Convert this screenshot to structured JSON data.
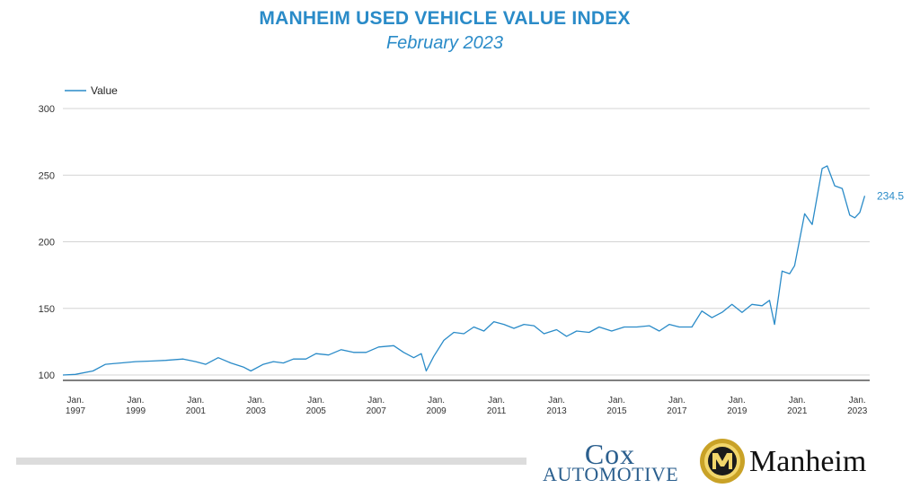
{
  "header": {
    "title": "MANHEIM USED VEHICLE VALUE INDEX",
    "subtitle": "February 2023"
  },
  "chart_data": {
    "type": "line",
    "title": "MANHEIM USED VEHICLE VALUE INDEX",
    "subtitle": "February 2023",
    "xlabel": "",
    "ylabel": "",
    "ylim": [
      100,
      300
    ],
    "yticks": [
      100,
      150,
      200,
      250,
      300
    ],
    "grid": true,
    "legend_position": "top-left",
    "color": "#2a8bc8",
    "xtick_labels": [
      {
        "year": 1997,
        "month": "Jan.",
        "year_label": "1997"
      },
      {
        "year": 1999,
        "month": "Jan.",
        "year_label": "1999"
      },
      {
        "year": 2001,
        "month": "Jan.",
        "year_label": "2001"
      },
      {
        "year": 2003,
        "month": "Jan.",
        "year_label": "2003"
      },
      {
        "year": 2005,
        "month": "Jan.",
        "year_label": "2005"
      },
      {
        "year": 2007,
        "month": "Jan.",
        "year_label": "2007"
      },
      {
        "year": 2009,
        "month": "Jan.",
        "year_label": "2009"
      },
      {
        "year": 2011,
        "month": "Jan.",
        "year_label": "2011"
      },
      {
        "year": 2013,
        "month": "Jan.",
        "year_label": "2013"
      },
      {
        "year": 2015,
        "month": "Jan.",
        "year_label": "2015"
      },
      {
        "year": 2017,
        "month": "Jan.",
        "year_label": "2017"
      },
      {
        "year": 2019,
        "month": "Jan.",
        "year_label": "2019"
      },
      {
        "year": 2021,
        "month": "Jan.",
        "year_label": "2021"
      },
      {
        "year": 2023,
        "month": "Jan.",
        "year_label": "2023"
      }
    ],
    "series": [
      {
        "name": "Value",
        "end_label": "234.5",
        "points": [
          [
            "1997-01",
            100
          ],
          [
            "1997-06",
            100.5
          ],
          [
            "1998-01",
            103
          ],
          [
            "1998-06",
            108
          ],
          [
            "1998-12",
            109
          ],
          [
            "1999-06",
            110
          ],
          [
            "2000-01",
            110.5
          ],
          [
            "2000-06",
            111
          ],
          [
            "2001-01",
            112
          ],
          [
            "2001-06",
            110
          ],
          [
            "2001-10",
            108
          ],
          [
            "2002-03",
            113
          ],
          [
            "2002-08",
            109
          ],
          [
            "2003-01",
            106
          ],
          [
            "2003-04",
            103
          ],
          [
            "2003-09",
            108
          ],
          [
            "2004-01",
            110
          ],
          [
            "2004-05",
            109
          ],
          [
            "2004-09",
            112
          ],
          [
            "2005-02",
            112
          ],
          [
            "2005-06",
            116
          ],
          [
            "2005-11",
            115
          ],
          [
            "2006-04",
            119
          ],
          [
            "2006-09",
            117
          ],
          [
            "2007-02",
            117
          ],
          [
            "2007-07",
            121
          ],
          [
            "2008-01",
            122
          ],
          [
            "2008-05",
            117
          ],
          [
            "2008-09",
            113
          ],
          [
            "2008-12",
            116
          ],
          [
            "2009-02",
            103
          ],
          [
            "2009-05",
            114
          ],
          [
            "2009-09",
            126
          ],
          [
            "2010-01",
            132
          ],
          [
            "2010-05",
            131
          ],
          [
            "2010-09",
            136
          ],
          [
            "2011-01",
            133
          ],
          [
            "2011-05",
            140
          ],
          [
            "2011-09",
            138
          ],
          [
            "2012-01",
            135
          ],
          [
            "2012-05",
            138
          ],
          [
            "2012-09",
            137
          ],
          [
            "2013-01",
            131
          ],
          [
            "2013-06",
            134
          ],
          [
            "2013-10",
            129
          ],
          [
            "2014-02",
            133
          ],
          [
            "2014-07",
            132
          ],
          [
            "2014-11",
            136
          ],
          [
            "2015-04",
            133
          ],
          [
            "2015-09",
            136
          ],
          [
            "2016-02",
            136
          ],
          [
            "2016-07",
            137
          ],
          [
            "2016-11",
            133
          ],
          [
            "2017-03",
            138
          ],
          [
            "2017-07",
            136
          ],
          [
            "2017-12",
            136
          ],
          [
            "2018-04",
            148
          ],
          [
            "2018-08",
            143
          ],
          [
            "2018-12",
            147
          ],
          [
            "2019-04",
            153
          ],
          [
            "2019-08",
            147
          ],
          [
            "2019-12",
            153
          ],
          [
            "2020-04",
            152
          ],
          [
            "2020-07",
            156
          ],
          [
            "2020-09",
            138
          ],
          [
            "2020-12",
            178
          ],
          [
            "2021-03",
            176
          ],
          [
            "2021-05",
            182
          ],
          [
            "2021-09",
            221
          ],
          [
            "2021-12",
            213
          ],
          [
            "2022-04",
            255
          ],
          [
            "2022-06",
            257
          ],
          [
            "2022-09",
            242
          ],
          [
            "2022-12",
            240
          ],
          [
            "2023-03",
            220
          ],
          [
            "2023-05",
            218
          ],
          [
            "2023-07",
            222
          ],
          [
            "2023-09",
            234.5
          ]
        ]
      }
    ]
  },
  "footer": {
    "cox_top": "Cox",
    "cox_bottom": "AUTOMOTIVE",
    "manheim": "Manheim"
  }
}
